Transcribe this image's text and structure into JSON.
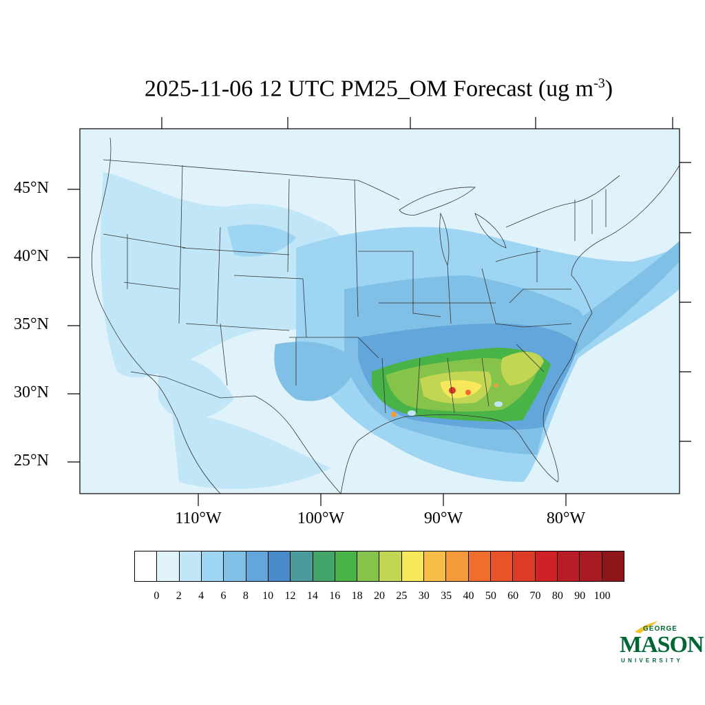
{
  "title": {
    "prefix": "2025-11-06 12 UTC PM25_OM Forecast (ug m",
    "superscript": "-3",
    "suffix": ")"
  },
  "latitude_labels": [
    "45°N",
    "40°N",
    "35°N",
    "30°N",
    "25°N"
  ],
  "longitude_labels": [
    "110°W",
    "100°W",
    "90°W",
    "80°W"
  ],
  "colorbar": {
    "labels": [
      "0",
      "2",
      "4",
      "6",
      "8",
      "10",
      "12",
      "14",
      "16",
      "18",
      "20",
      "25",
      "30",
      "35",
      "40",
      "50",
      "60",
      "70",
      "80",
      "90",
      "100"
    ],
    "colors": [
      "#ffffff",
      "#e0f3fb",
      "#c1e6f7",
      "#9dd5f2",
      "#80bfe6",
      "#63a6db",
      "#4a8ac8",
      "#4b9a9b",
      "#44a56b",
      "#48b447",
      "#86c34b",
      "#c3d653",
      "#f6e85a",
      "#f8bd48",
      "#f59a3a",
      "#f06d2d",
      "#e85428",
      "#dc3b26",
      "#cf2227",
      "#b81c24",
      "#a81b22",
      "#8e1519"
    ]
  },
  "map": {
    "background_color": "#e0f3fb",
    "border_color": "#333333"
  },
  "logo": {
    "line1": "GEORGE",
    "line2": "MASON",
    "line3": "UNIVERSITY",
    "color": "#006633",
    "accent": "#f2c12e"
  }
}
